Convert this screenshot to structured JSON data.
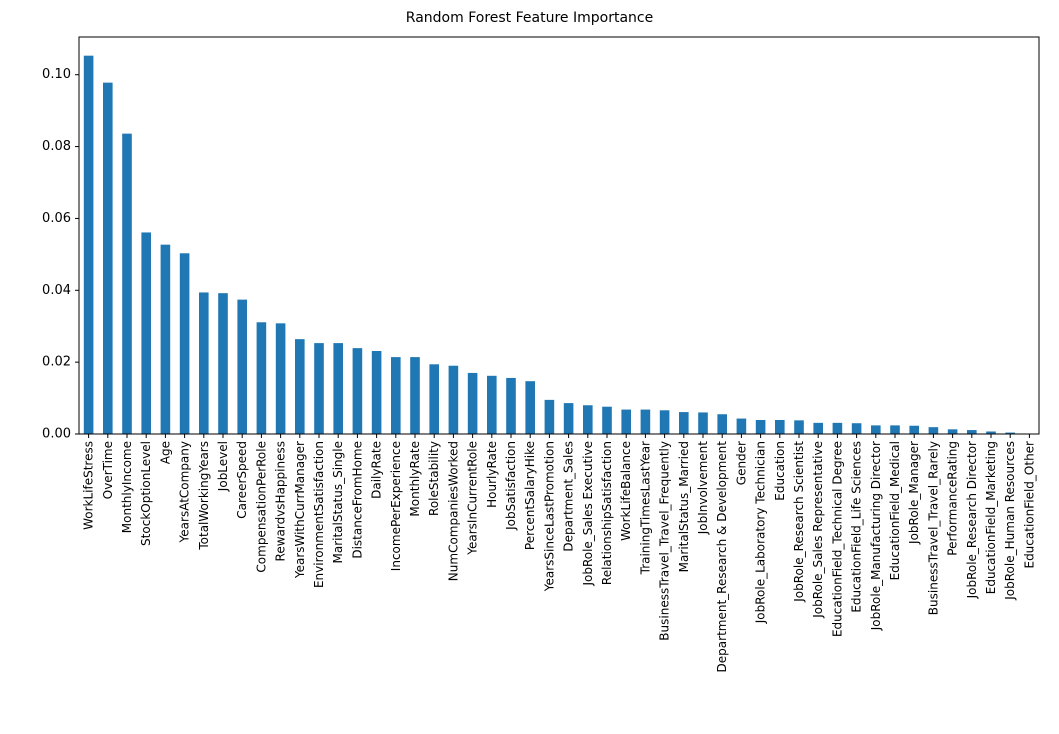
{
  "chart_data": {
    "type": "bar",
    "title": "Random Forest Feature Importance",
    "xlabel": "",
    "ylabel": "",
    "ylim": [
      0,
      0.1105
    ],
    "yticks": [
      "0.00",
      "0.02",
      "0.04",
      "0.06",
      "0.08",
      "0.10"
    ],
    "grid": false,
    "legend": false,
    "bar_color": "#1f77b4",
    "categories": [
      "WorkLifeStress",
      "OverTime",
      "MonthlyIncome",
      "StockOptionLevel",
      "Age",
      "YearsAtCompany",
      "TotalWorkingYears",
      "JobLevel",
      "CareerSpeed",
      "CompensationPerRole",
      "RewardvsHappiness",
      "YearsWithCurrManager",
      "EnvironmentSatisfaction",
      "MaritalStatus_Single",
      "DistanceFromHome",
      "DailyRate",
      "IncomePerExperience",
      "MonthlyRate",
      "RoleStability",
      "NumCompaniesWorked",
      "YearsInCurrentRole",
      "HourlyRate",
      "JobSatisfaction",
      "PercentSalaryHike",
      "YearsSinceLastPromotion",
      "Department_Sales",
      "JobRole_Sales Executive",
      "RelationshipSatisfaction",
      "WorkLifeBalance",
      "TrainingTimesLastYear",
      "BusinessTravel_Travel_Frequently",
      "MaritalStatus_Married",
      "JobInvolvement",
      "Department_Research & Development",
      "Gender",
      "JobRole_Laboratory Technician",
      "Education",
      "JobRole_Research Scientist",
      "JobRole_Sales Representative",
      "EducationField_Technical Degree",
      "EducationField_Life Sciences",
      "JobRole_Manufacturing Director",
      "EducationField_Medical",
      "JobRole_Manager",
      "BusinessTravel_Travel_Rarely",
      "PerformanceRating",
      "JobRole_Research Director",
      "EducationField_Marketing",
      "JobRole_Human Resources",
      "EducationField_Other"
    ],
    "values": [
      0.1053,
      0.0978,
      0.0836,
      0.0561,
      0.0527,
      0.0503,
      0.0394,
      0.0392,
      0.0374,
      0.0311,
      0.0308,
      0.0264,
      0.0253,
      0.0253,
      0.0239,
      0.0231,
      0.0214,
      0.0214,
      0.0194,
      0.019,
      0.017,
      0.0162,
      0.0156,
      0.0147,
      0.0095,
      0.0086,
      0.008,
      0.0076,
      0.0068,
      0.0068,
      0.0066,
      0.0061,
      0.006,
      0.0055,
      0.0043,
      0.0039,
      0.0039,
      0.0038,
      0.0031,
      0.0031,
      0.003,
      0.0024,
      0.0024,
      0.0023,
      0.0019,
      0.0013,
      0.0011,
      0.0007,
      0.0004,
      0.0001
    ]
  }
}
